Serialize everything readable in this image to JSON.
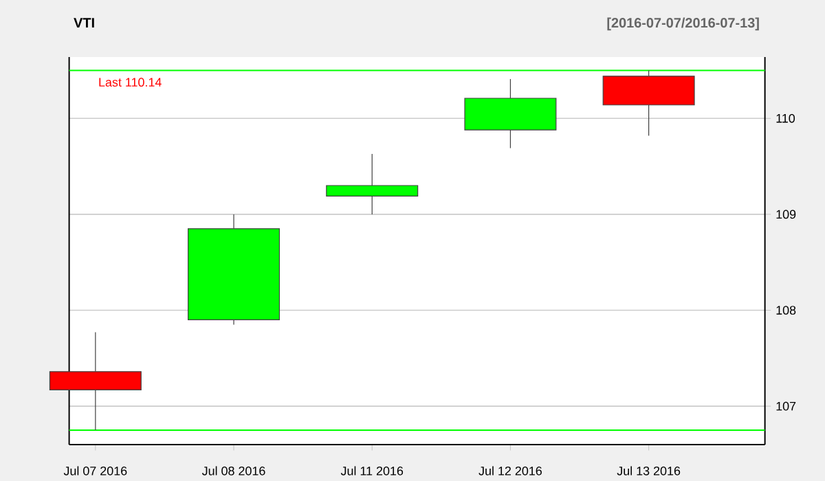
{
  "chart_data": {
    "type": "candlestick",
    "title": "VTI",
    "subtitle": "[2016-07-07/2016-07-13]",
    "categories": [
      "Jul 07 2016",
      "Jul 08 2016",
      "Jul 11 2016",
      "Jul 12 2016",
      "Jul 13 2016"
    ],
    "ohlc": [
      [
        107.36,
        107.77,
        106.75,
        107.17
      ],
      [
        107.9,
        109.0,
        107.85,
        108.85
      ],
      [
        109.19,
        109.63,
        109.0,
        109.3
      ],
      [
        109.88,
        110.41,
        109.69,
        110.21
      ],
      [
        110.44,
        110.5,
        109.82,
        110.14
      ]
    ],
    "colors": [
      "#ff0000",
      "#00ff00",
      "#00ff00",
      "#00ff00",
      "#ff0000"
    ],
    "ylim": [
      106.6,
      110.64
    ],
    "yticks": [
      107,
      108,
      109,
      110
    ],
    "grid": "y",
    "ref_lines": [
      {
        "axis": "y",
        "value": 110.5,
        "color": "#00ff00"
      },
      {
        "axis": "y",
        "value": 106.75,
        "color": "#00ff00"
      }
    ],
    "annotations": [
      "Last 110.14"
    ]
  }
}
